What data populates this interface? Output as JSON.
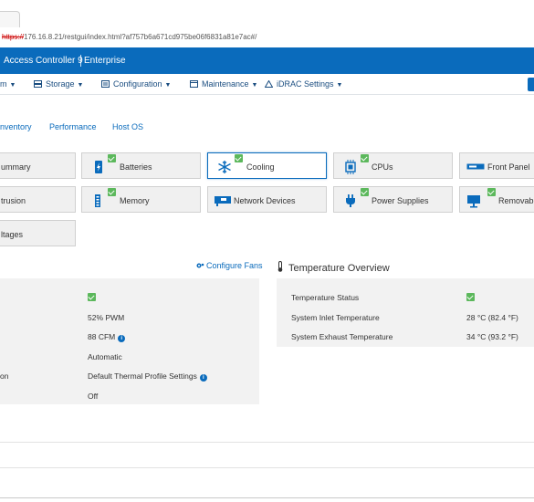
{
  "browser": {
    "url_proto": "https://",
    "url_rest": "176.16.8.21/restgui/index.html?af757b6a671cd975be06f6831a81e7ac#/"
  },
  "brand": {
    "title": "Access Controller 9",
    "edition": "Enterprise"
  },
  "nav": {
    "items": [
      {
        "label": "m",
        "icon": "system-icon"
      },
      {
        "label": "Storage",
        "icon": "storage-icon"
      },
      {
        "label": "Configuration",
        "icon": "configuration-icon"
      },
      {
        "label": "Maintenance",
        "icon": "maintenance-icon"
      },
      {
        "label": "iDRAC Settings",
        "icon": "settings-icon"
      }
    ]
  },
  "subtabs": [
    "nventory",
    "Performance",
    "Host OS"
  ],
  "tiles": [
    {
      "label": "ummary",
      "icon": "summary-icon",
      "status": null,
      "selected": false
    },
    {
      "label": "Batteries",
      "icon": "battery-icon",
      "status": "ok",
      "selected": false
    },
    {
      "label": "Cooling",
      "icon": "snowflake-icon",
      "status": "ok",
      "selected": true
    },
    {
      "label": "CPUs",
      "icon": "cpu-icon",
      "status": "ok",
      "selected": false
    },
    {
      "label": "Front Panel",
      "icon": "front-panel-icon",
      "status": null,
      "selected": false
    },
    {
      "label": "trusion",
      "icon": "intrusion-icon",
      "status": null,
      "selected": false
    },
    {
      "label": "Memory",
      "icon": "memory-icon",
      "status": "ok",
      "selected": false
    },
    {
      "label": "Network Devices",
      "icon": "network-icon",
      "status": null,
      "selected": false
    },
    {
      "label": "Power Supplies",
      "icon": "power-plug-icon",
      "status": "ok",
      "selected": false
    },
    {
      "label": "Removable",
      "icon": "removable-icon",
      "status": "ok",
      "selected": false
    },
    {
      "label": "ltages",
      "icon": "voltage-icon",
      "status": null,
      "selected": false
    }
  ],
  "fans": {
    "configure_label": "Configure Fans",
    "rows": [
      {
        "label": "",
        "value": "",
        "type": "status-ok"
      },
      {
        "label": "",
        "value": "52% PWM",
        "info": false
      },
      {
        "label": "",
        "value": "88 CFM",
        "info": true
      },
      {
        "label": "",
        "value": "Automatic",
        "info": false
      },
      {
        "label": "on",
        "value": "Default Thermal Profile Settings",
        "info": true
      },
      {
        "label": "",
        "value": "Off",
        "info": false
      }
    ]
  },
  "temperature": {
    "title": "Temperature Overview",
    "rows": [
      {
        "label": "Temperature Status",
        "value": "",
        "type": "status-ok"
      },
      {
        "label": "System Inlet Temperature",
        "value": "28 °C (82.4 °F)"
      },
      {
        "label": "System Exhaust Temperature",
        "value": "34 °C (93.2 °F)"
      }
    ]
  },
  "colors": {
    "brand": "#0a6bbc",
    "ok": "#5cb85c"
  }
}
